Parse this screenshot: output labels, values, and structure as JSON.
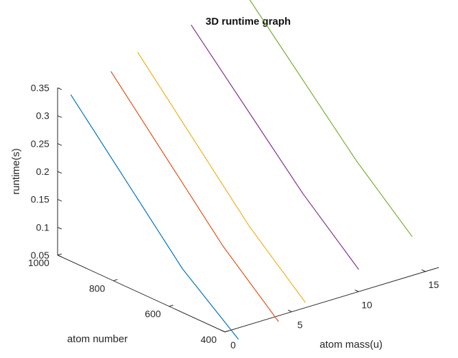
{
  "chart_data": {
    "type": "line",
    "title": "3D runtime graph",
    "xlabel": "atom mass(u)",
    "ylabel": "atom number",
    "zlabel": "runtime(s)",
    "x_ticks": [
      0,
      5,
      10,
      15
    ],
    "y_ticks": [
      1000,
      800,
      600,
      400
    ],
    "z_ticks": [
      "0.35",
      "0.3",
      "0.25",
      "0.2",
      "0.15",
      "0.1",
      "0.05"
    ],
    "xlim": [
      0,
      16
    ],
    "ylim": [
      400,
      1000
    ],
    "zlim": [
      0.05,
      0.35
    ],
    "grid": false,
    "series": [
      {
        "color": "#0072BD",
        "x": [
          1,
          1,
          1
        ],
        "y": [
          1000,
          600,
          400
        ],
        "z": [
          0.33,
          0.11,
          0.03
        ]
      },
      {
        "color": "#D95319",
        "x": [
          4,
          4,
          4
        ],
        "y": [
          1000,
          600,
          400
        ],
        "z": [
          0.35,
          0.13,
          0.04
        ]
      },
      {
        "color": "#EDB120",
        "x": [
          6,
          6,
          6
        ],
        "y": [
          1000,
          600,
          400
        ],
        "z": [
          0.37,
          0.15,
          0.06
        ]
      },
      {
        "color": "#7E2F8E",
        "x": [
          10,
          10,
          10
        ],
        "y": [
          1000,
          600,
          400
        ],
        "z": [
          0.39,
          0.18,
          0.09
        ]
      },
      {
        "color": "#77AC30",
        "x": [
          14,
          14,
          14
        ],
        "y": [
          1000,
          600,
          400
        ],
        "z": [
          0.42,
          0.21,
          0.12
        ]
      }
    ]
  }
}
